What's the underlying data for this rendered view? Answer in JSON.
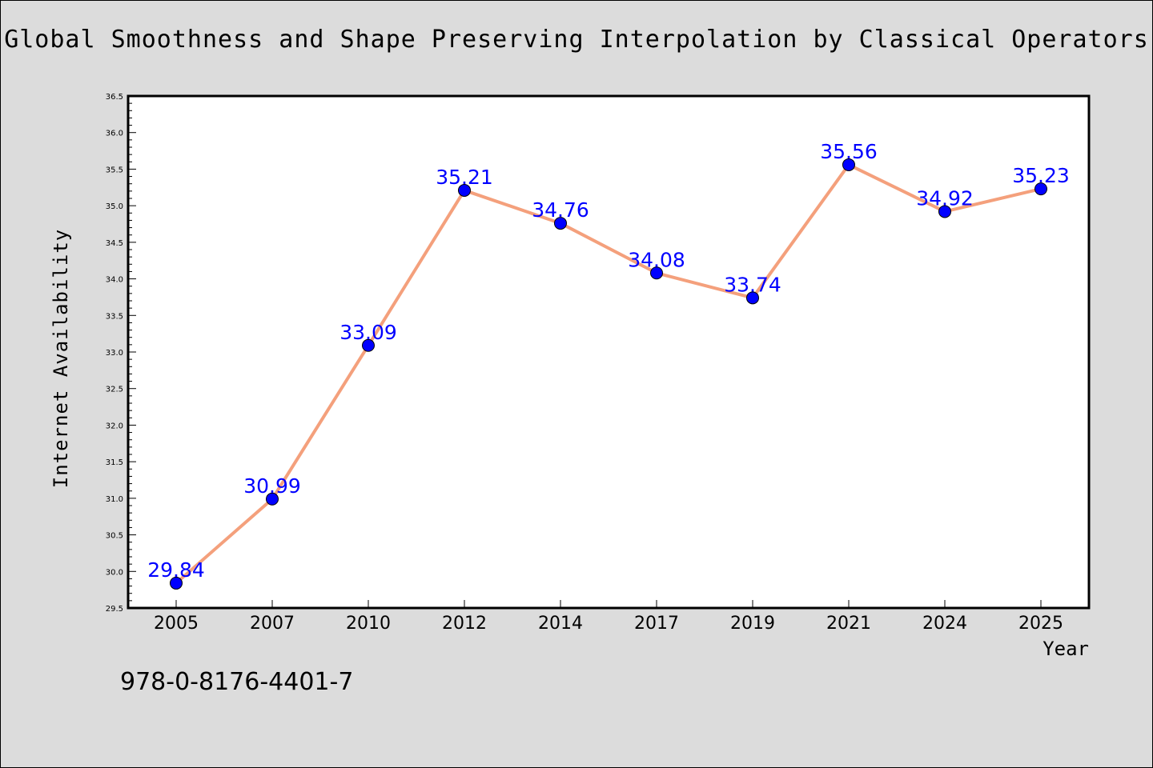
{
  "chart_data": {
    "type": "line",
    "title": "Global Smoothness and Shape Preserving Interpolation by Classical Operators",
    "xlabel": "Year",
    "ylabel": "Internet Availability",
    "categories": [
      "2005",
      "2007",
      "2010",
      "2012",
      "2014",
      "2017",
      "2019",
      "2021",
      "2024",
      "2025"
    ],
    "series": [
      {
        "values": [
          29.84,
          30.99,
          33.09,
          35.21,
          34.76,
          34.08,
          33.74,
          35.56,
          34.92,
          35.23
        ],
        "labels": [
          "29.84",
          "30.99",
          "33.09",
          "35.21",
          "34.76",
          "34.08",
          "33.74",
          "35.56",
          "34.92",
          "35.23"
        ],
        "line_color": "#f4a07c",
        "marker_color": "#0000ff"
      }
    ],
    "ylim": [
      29.5,
      36.5
    ],
    "yticks": [
      29.5,
      30.0,
      30.5,
      31.0,
      31.5,
      32.0,
      32.5,
      33.0,
      33.5,
      34.0,
      34.5,
      35.0,
      35.5,
      36.0,
      36.5
    ],
    "ytick_labels": [
      "29.5",
      "30.0",
      "30.5",
      "31.0",
      "31.5",
      "32.0",
      "32.5",
      "33.0",
      "33.5",
      "34.0",
      "34.5",
      "35.0",
      "35.5",
      "36.0",
      "36.5"
    ],
    "grid": false,
    "legend": "none",
    "background_color": "#dcdcdc",
    "plot_background_color": "#ffffff"
  },
  "footer_text": "978-0-8176-4401-7"
}
